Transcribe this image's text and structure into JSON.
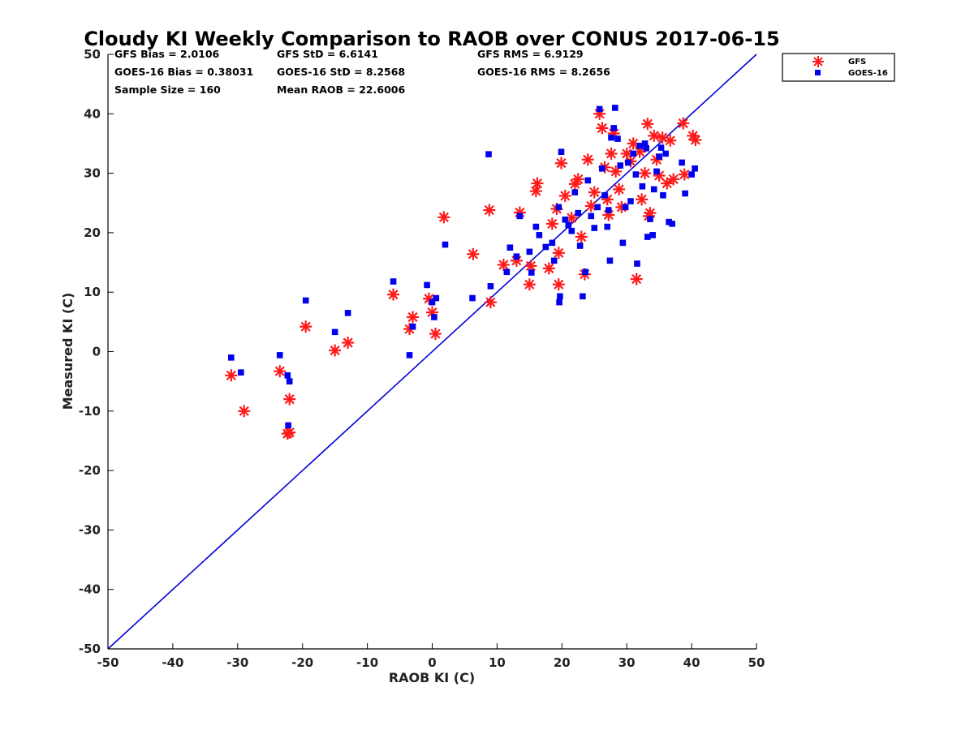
{
  "chart_data": {
    "type": "scatter",
    "title": "Cloudy KI Weekly Comparison to RAOB over CONUS 2017-06-15",
    "xlabel": "RAOB KI (C)",
    "ylabel": "Measured KI (C)",
    "xlim": [
      -50,
      50
    ],
    "ylim": [
      -50,
      50
    ],
    "xticks": [
      "-50",
      "-40",
      "-30",
      "-20",
      "-10",
      "0",
      "10",
      "20",
      "30",
      "40",
      "50"
    ],
    "yticks": [
      "50",
      "40",
      "30",
      "20",
      "10",
      "0",
      "-10",
      "-20",
      "-30",
      "-40",
      "-50"
    ],
    "grid": false,
    "legend_position": "outside-top-right",
    "reference_line": {
      "from": [
        -50,
        -50
      ],
      "to": [
        50,
        50
      ],
      "color": "#0000dd"
    },
    "stats": [
      [
        "GFS Bias = 2.0106",
        "GFS StD = 6.6141",
        "GFS RMS = 6.9129"
      ],
      [
        "GOES-16 Bias = 0.38031",
        "GOES-16 StD = 8.2568",
        "GOES-16 RMS = 8.2656"
      ],
      [
        "Sample Size = 160",
        "Mean RAOB = 22.6006",
        ""
      ]
    ],
    "series": [
      {
        "name": "GFS",
        "marker": "asterisk",
        "color": "#ff1a1a",
        "points": [
          [
            -31,
            -4
          ],
          [
            -29,
            -10
          ],
          [
            -23.5,
            -3.3
          ],
          [
            -22,
            -13.6
          ],
          [
            -22.3,
            -13.8
          ],
          [
            -22,
            -8
          ],
          [
            -19.5,
            4.2
          ],
          [
            -15,
            0.2
          ],
          [
            -13,
            1.5
          ],
          [
            -6,
            9.6
          ],
          [
            -3.5,
            3.8
          ],
          [
            -3,
            5.8
          ],
          [
            -0.5,
            8.9
          ],
          [
            0,
            6.6
          ],
          [
            0.5,
            3
          ],
          [
            1.8,
            22.6
          ],
          [
            6.3,
            16.4
          ],
          [
            8.8,
            23.8
          ],
          [
            9,
            8.3
          ],
          [
            11,
            14.6
          ],
          [
            13,
            15.3
          ],
          [
            13.5,
            23.4
          ],
          [
            15,
            11.3
          ],
          [
            15.2,
            14.4
          ],
          [
            16,
            27
          ],
          [
            16.2,
            28.3
          ],
          [
            18,
            14
          ],
          [
            18.5,
            21.5
          ],
          [
            19.2,
            24
          ],
          [
            19.5,
            16.6
          ],
          [
            19.5,
            11.3
          ],
          [
            19.9,
            31.7
          ],
          [
            20.5,
            26.2
          ],
          [
            21.5,
            22.5
          ],
          [
            22,
            28.2
          ],
          [
            22.5,
            29
          ],
          [
            23,
            19.3
          ],
          [
            23.5,
            13
          ],
          [
            24,
            32.3
          ],
          [
            24.5,
            24.5
          ],
          [
            25,
            26.8
          ],
          [
            25.8,
            40
          ],
          [
            26.2,
            37.6
          ],
          [
            26.6,
            31
          ],
          [
            27,
            25.6
          ],
          [
            27.2,
            23
          ],
          [
            27.6,
            33.3
          ],
          [
            28,
            36.7
          ],
          [
            28.3,
            30.3
          ],
          [
            28.8,
            27.3
          ],
          [
            29.2,
            24.3
          ],
          [
            30,
            33.3
          ],
          [
            30.6,
            32
          ],
          [
            31,
            35
          ],
          [
            31.5,
            12.2
          ],
          [
            32,
            33.6
          ],
          [
            32.3,
            25.6
          ],
          [
            32.8,
            30
          ],
          [
            33.2,
            38.3
          ],
          [
            33.6,
            23.3
          ],
          [
            34.2,
            36.3
          ],
          [
            34.6,
            32.3
          ],
          [
            35,
            29.6
          ],
          [
            35.5,
            36
          ],
          [
            36.2,
            28.3
          ],
          [
            36.7,
            35.5
          ],
          [
            37.2,
            29
          ],
          [
            38.7,
            38.4
          ],
          [
            38.9,
            29.8
          ],
          [
            40.2,
            36.3
          ],
          [
            40.6,
            35.6
          ],
          [
            33.4,
            22.8
          ]
        ]
      },
      {
        "name": "GOES-16",
        "marker": "square",
        "color": "#0000ee",
        "points": [
          [
            -31,
            -1
          ],
          [
            -29.5,
            -3.5
          ],
          [
            -23.5,
            -0.6
          ],
          [
            -22.3,
            -4
          ],
          [
            -22,
            -5
          ],
          [
            -22.2,
            -12.4
          ],
          [
            -19.5,
            8.6
          ],
          [
            -15,
            3.3
          ],
          [
            -13,
            6.5
          ],
          [
            -6,
            11.8
          ],
          [
            -3.5,
            -0.6
          ],
          [
            -3,
            4.2
          ],
          [
            -0.8,
            11.2
          ],
          [
            0,
            8.3
          ],
          [
            0.3,
            5.8
          ],
          [
            0.6,
            9
          ],
          [
            2,
            18
          ],
          [
            6.2,
            9
          ],
          [
            8.7,
            33.2
          ],
          [
            9,
            11
          ],
          [
            11.5,
            13.4
          ],
          [
            12,
            17.5
          ],
          [
            13,
            16
          ],
          [
            13.5,
            22.8
          ],
          [
            15,
            16.8
          ],
          [
            15.3,
            13.3
          ],
          [
            16,
            21
          ],
          [
            16.5,
            19.6
          ],
          [
            17.5,
            17.6
          ],
          [
            18.5,
            18.3
          ],
          [
            18.8,
            15.3
          ],
          [
            19.5,
            24.3
          ],
          [
            19.6,
            8.3
          ],
          [
            19.7,
            9.3
          ],
          [
            19.9,
            33.6
          ],
          [
            20.5,
            22.2
          ],
          [
            21,
            21.3
          ],
          [
            21.5,
            20.3
          ],
          [
            22,
            26.8
          ],
          [
            22.5,
            23.3
          ],
          [
            22.8,
            17.8
          ],
          [
            23.2,
            9.3
          ],
          [
            23.6,
            13.4
          ],
          [
            24,
            28.8
          ],
          [
            24.5,
            22.8
          ],
          [
            25,
            20.8
          ],
          [
            25.5,
            24.3
          ],
          [
            25.8,
            40.8
          ],
          [
            26.2,
            30.8
          ],
          [
            26.6,
            26.3
          ],
          [
            27,
            21
          ],
          [
            27.2,
            23.8
          ],
          [
            27.4,
            15.3
          ],
          [
            27.6,
            36
          ],
          [
            28,
            37.6
          ],
          [
            28.2,
            41
          ],
          [
            28.6,
            35.8
          ],
          [
            29,
            31.3
          ],
          [
            29.4,
            18.3
          ],
          [
            29.8,
            24.3
          ],
          [
            30.2,
            31.8
          ],
          [
            30.6,
            25.3
          ],
          [
            31,
            33.3
          ],
          [
            31.4,
            29.8
          ],
          [
            31.6,
            14.8
          ],
          [
            32,
            34.6
          ],
          [
            32.4,
            27.8
          ],
          [
            32.8,
            35
          ],
          [
            33.2,
            19.3
          ],
          [
            33.6,
            22.3
          ],
          [
            34,
            19.6
          ],
          [
            34.2,
            27.3
          ],
          [
            34.6,
            30.3
          ],
          [
            35,
            32.8
          ],
          [
            35.3,
            34.3
          ],
          [
            35.6,
            26.3
          ],
          [
            36,
            33.3
          ],
          [
            36.5,
            21.8
          ],
          [
            37,
            21.5
          ],
          [
            38.5,
            31.8
          ],
          [
            39,
            26.6
          ],
          [
            40,
            29.8
          ],
          [
            40.5,
            30.8
          ],
          [
            33,
            34.2
          ]
        ]
      }
    ]
  }
}
